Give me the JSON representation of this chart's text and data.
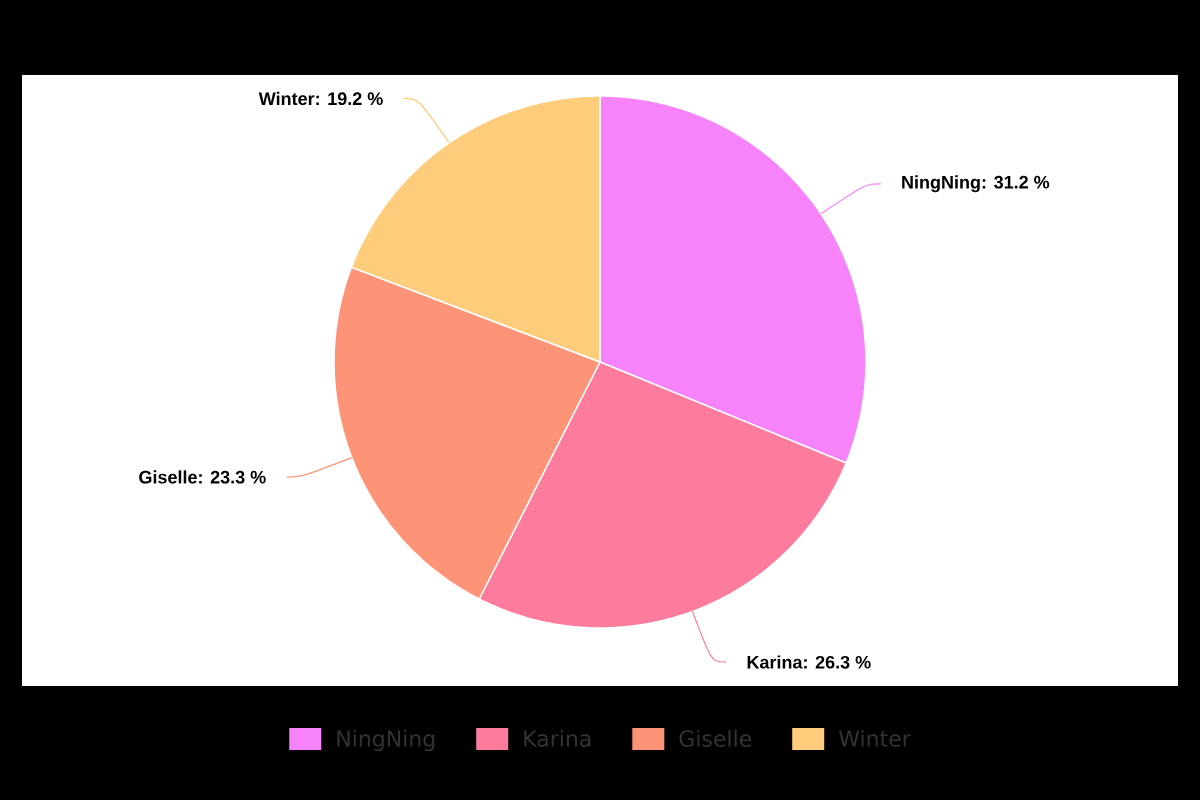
{
  "chart_data": {
    "type": "pie",
    "categories": [
      "NingNing",
      "Karina",
      "Giselle",
      "Winter"
    ],
    "values": [
      31.2,
      26.3,
      23.3,
      19.2
    ],
    "colors": [
      "#f783fb",
      "#fd7b9c",
      "#fe9477",
      "#fecd7b"
    ],
    "value_labels": [
      "NingNing: 31.2 %",
      "Karina: 26.3 %",
      "Giselle: 23.3 %",
      "Winter: 19.2 %"
    ],
    "legend": "bottom"
  }
}
